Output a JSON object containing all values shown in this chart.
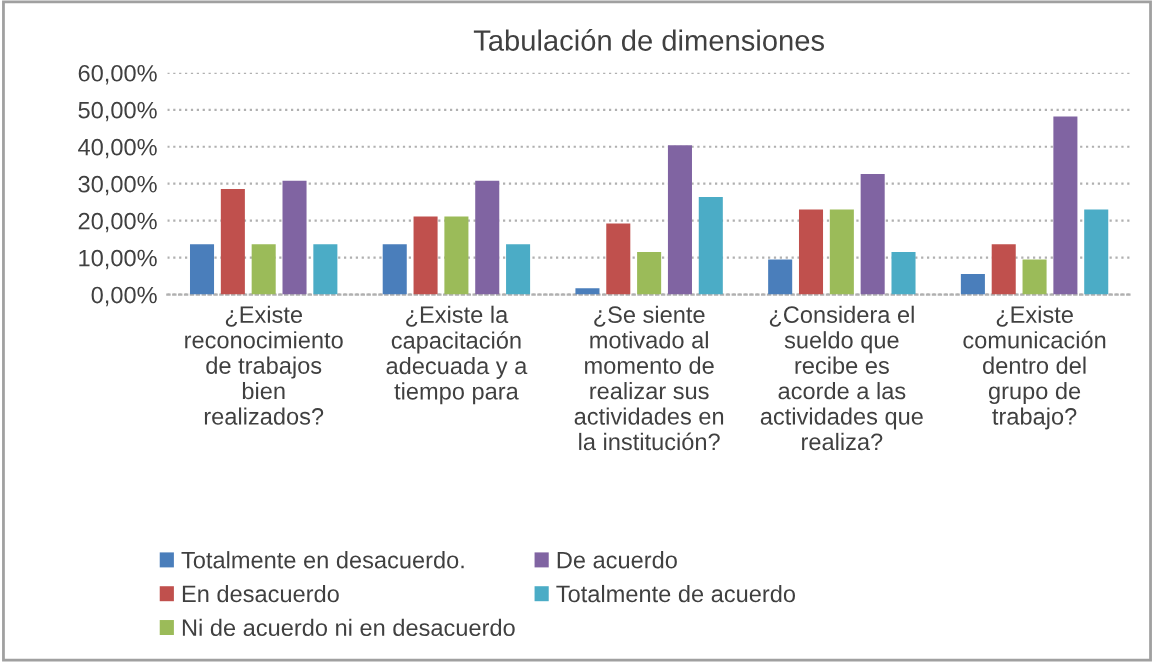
{
  "chart_data": {
    "type": "bar",
    "title": "Tabulación de dimensiones",
    "categories": [
      "¿Existe reconocimiento de trabajos bien realizados?",
      "¿Existe la capacitación adecuada y a tiempo para",
      "¿Se siente motivado al momento de realizar sus actividades en la institución?",
      "¿Considera el sueldo que recibe es acorde a las actividades que realiza?",
      "¿Existe comunicación dentro del grupo de trabajo?"
    ],
    "series": [
      {
        "name": "Totalmente en desacuerdo.",
        "color": "#4a7ebb",
        "values": [
          13.6,
          13.6,
          1.7,
          9.5,
          5.6
        ]
      },
      {
        "name": "En desacuerdo",
        "color": "#c0504d",
        "values": [
          28.6,
          21.1,
          19.2,
          23.0,
          13.6
        ]
      },
      {
        "name": "Ni de acuerdo ni en desacuerdo",
        "color": "#9bbb59",
        "values": [
          13.6,
          21.1,
          11.5,
          23.0,
          9.5
        ]
      },
      {
        "name": "De acuerdo",
        "color": "#8064a2",
        "values": [
          30.8,
          30.8,
          40.4,
          32.6,
          48.2
        ]
      },
      {
        "name": "Totalmente de acuerdo",
        "color": "#4bacc6",
        "values": [
          13.6,
          13.6,
          26.4,
          11.5,
          23.0
        ]
      }
    ],
    "ylim": [
      0,
      60
    ],
    "yticks": [
      {
        "value": 0,
        "label": "0,00%"
      },
      {
        "value": 10,
        "label": "10,00%"
      },
      {
        "value": 20,
        "label": "20,00%"
      },
      {
        "value": 30,
        "label": "30,00%"
      },
      {
        "value": 40,
        "label": "40,00%"
      },
      {
        "value": 50,
        "label": "50,00%"
      },
      {
        "value": 60,
        "label": "60,00%"
      }
    ],
    "grid": "y",
    "legend": "bottom"
  }
}
